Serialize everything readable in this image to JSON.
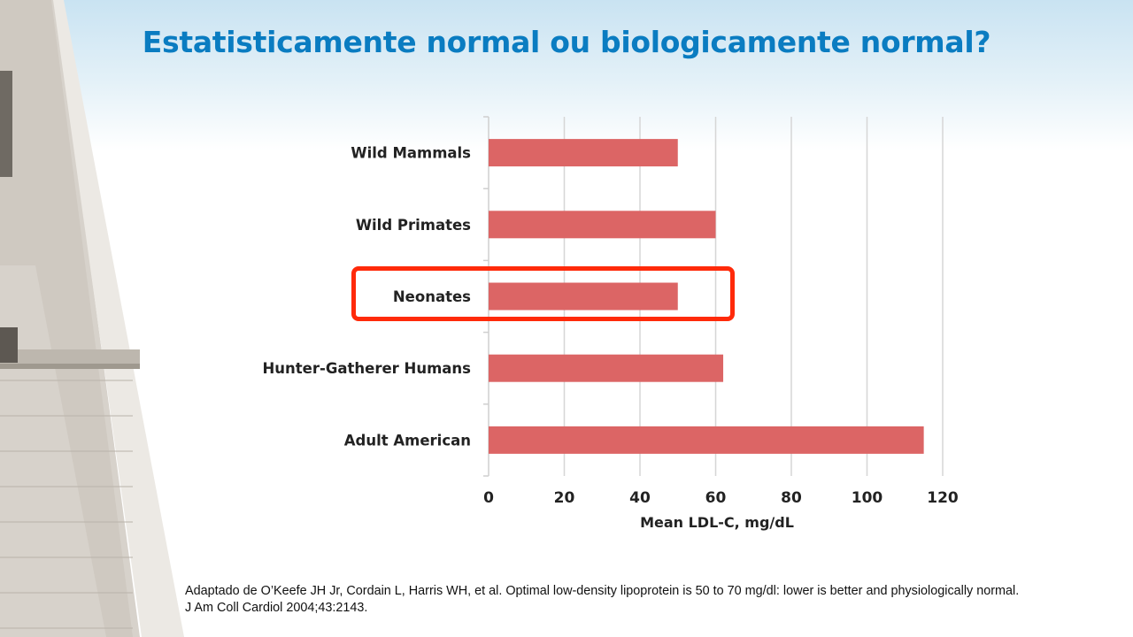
{
  "slide": {
    "title": "Estatisticamente normal ou biologicamente normal?",
    "citation_line1": "Adaptado de O’Keefe JH Jr, Cordain L, Harris WH, et al. Optimal low-density lipoprotein is 50 to 70 mg/dl: lower is better and physiologically normal.",
    "citation_line2": "J Am Coll Cardiol 2004;43:2143.",
    "highlighted_category": "Neonates"
  },
  "colors": {
    "title": "#0a7cc1",
    "bar": "#dc6565",
    "highlight": "#ff2a0a",
    "grid": "#d6d6d6"
  },
  "chart_data": {
    "type": "bar",
    "orientation": "horizontal",
    "categories": [
      "Wild Mammals",
      "Wild Primates",
      "Neonates",
      "Hunter-Gatherer Humans",
      "Adult American"
    ],
    "values": [
      50,
      60,
      50,
      62,
      115
    ],
    "xlabel": "Mean LDL-C, mg/dL",
    "ylabel": "",
    "xlim": [
      0,
      120
    ],
    "xticks": [
      0,
      20,
      40,
      60,
      80,
      100,
      120
    ],
    "grid": "vertical",
    "legend": "none"
  }
}
